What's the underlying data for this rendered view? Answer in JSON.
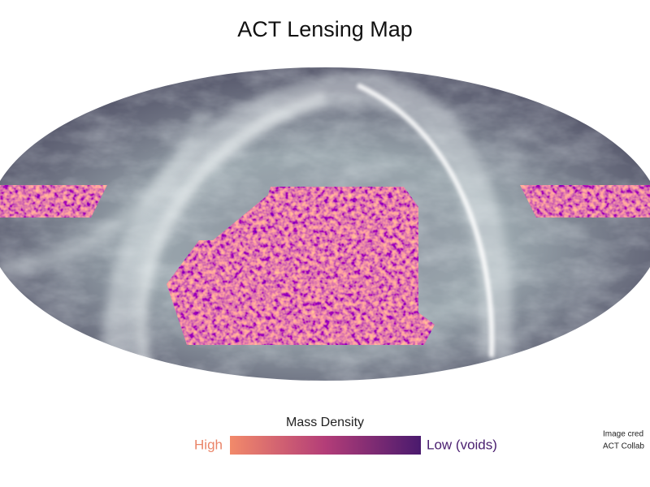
{
  "title": "ACT Lensing Map",
  "legend": {
    "title": "Mass Density",
    "low_end": "High",
    "high_end": "Low (voids)"
  },
  "credit": [
    "Image cred",
    "ACT Collab"
  ]
}
